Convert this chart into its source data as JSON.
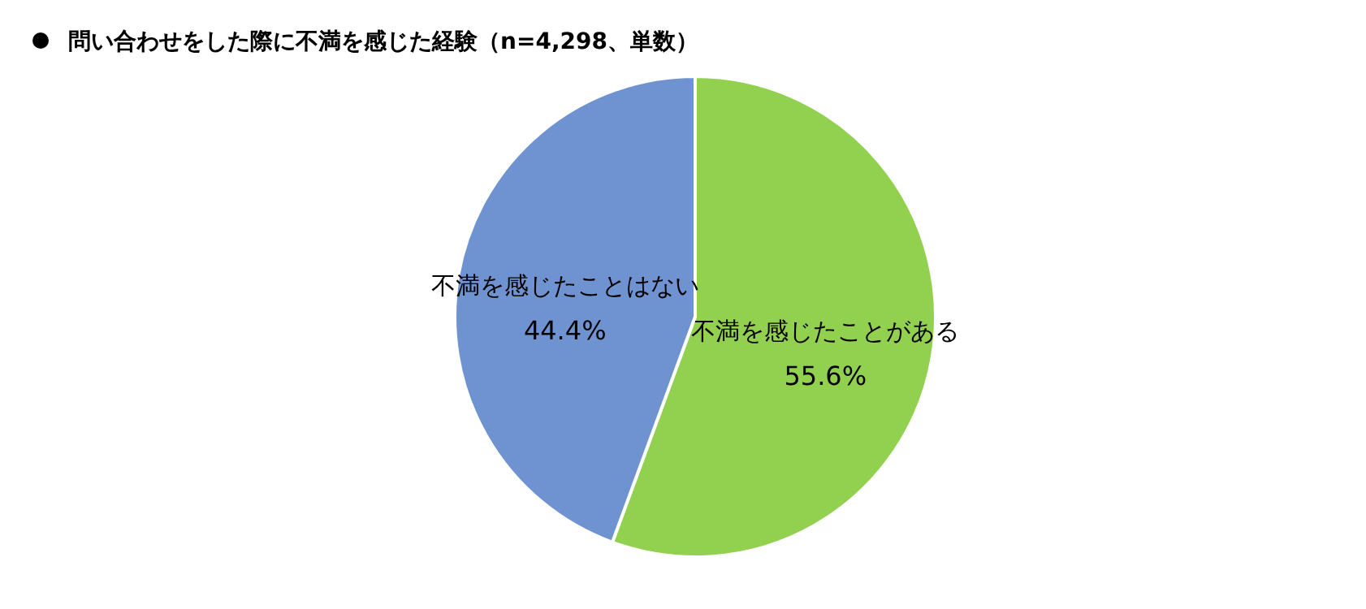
{
  "chart_data": {
    "type": "pie",
    "title": "問い合わせをした際に不満を感じた経験（n=4,298、単数）",
    "categories": [
      "不満を感じたことがある",
      "不満を感じたことはない"
    ],
    "values": [
      55.6,
      44.4
    ],
    "colors": [
      "#92d050",
      "#6f93d1"
    ],
    "value_labels": [
      "55.6%",
      "44.4%"
    ],
    "legend": false
  }
}
